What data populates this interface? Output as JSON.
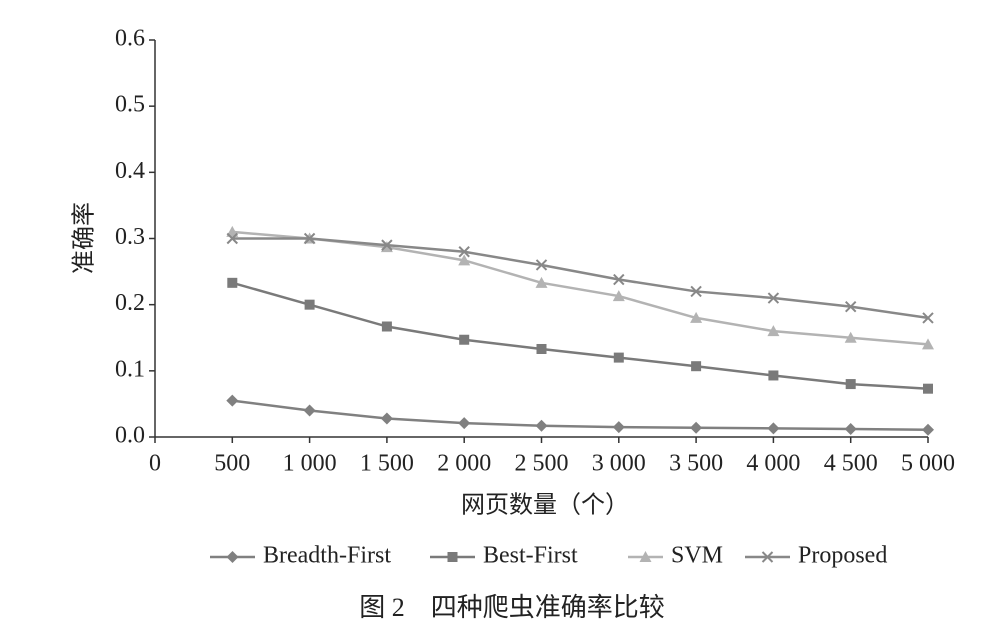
{
  "chart_data": {
    "type": "line",
    "xlabel": "网页数量（个）",
    "ylabel": "准确率",
    "caption": "图 2　四种爬虫准确率比较",
    "x": [
      500,
      1000,
      1500,
      2000,
      2500,
      3000,
      3500,
      4000,
      4500,
      5000
    ],
    "xlim": [
      0,
      5000
    ],
    "xticks": [
      0,
      500,
      {
        "value": 1000,
        "label": "1 000"
      },
      {
        "value": 1500,
        "label": "1 500"
      },
      {
        "value": 2000,
        "label": "2 000"
      },
      {
        "value": 2500,
        "label": "2 500"
      },
      {
        "value": 3000,
        "label": "3 000"
      },
      {
        "value": 3500,
        "label": "3 500"
      },
      {
        "value": 4000,
        "label": "4 000"
      },
      {
        "value": 4500,
        "label": "4 500"
      },
      {
        "value": 5000,
        "label": "5 000"
      }
    ],
    "ylim": [
      0,
      0.6
    ],
    "yticks": [
      {
        "value": 0,
        "label": "0.0"
      },
      0.1,
      0.2,
      0.3,
      0.4,
      0.5,
      0.6
    ],
    "series": [
      {
        "name": "Breadth-First",
        "color": "#808080",
        "marker": "diamond",
        "values": [
          0.055,
          0.04,
          0.028,
          0.021,
          0.017,
          0.015,
          0.014,
          0.013,
          0.012,
          0.011
        ]
      },
      {
        "name": "Best-First",
        "color": "#7a7a7a",
        "marker": "square",
        "values": [
          0.233,
          0.2,
          0.167,
          0.147,
          0.133,
          0.12,
          0.107,
          0.093,
          0.08,
          0.073
        ]
      },
      {
        "name": "SVM",
        "color": "#b3b3b3",
        "marker": "triangle",
        "values": [
          0.31,
          0.3,
          0.287,
          0.267,
          0.233,
          0.213,
          0.18,
          0.16,
          0.15,
          0.14
        ]
      },
      {
        "name": "Proposed",
        "color": "#888888",
        "marker": "x",
        "values": [
          0.3,
          0.3,
          0.29,
          0.28,
          0.26,
          0.238,
          0.22,
          0.21,
          0.197,
          0.18
        ]
      }
    ]
  }
}
